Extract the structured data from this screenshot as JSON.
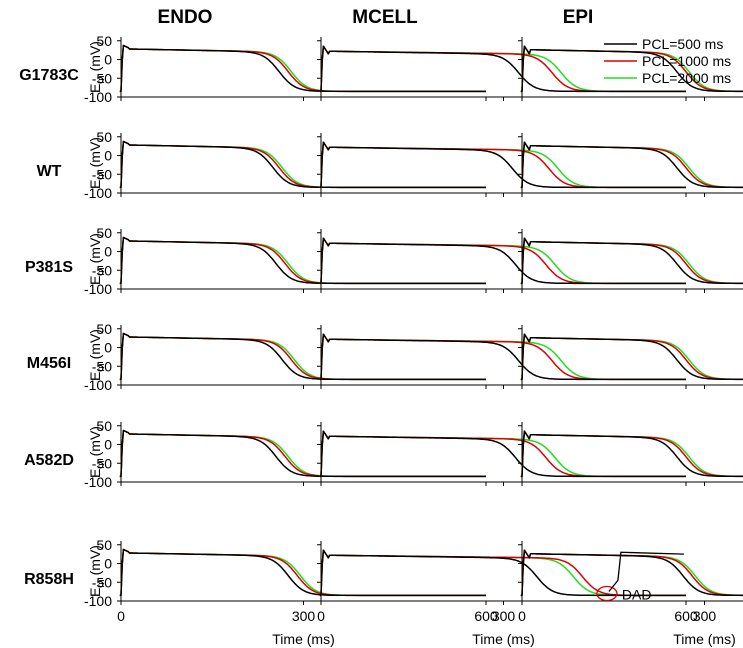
{
  "chart_data": {
    "type": "line",
    "columns": [
      "ENDO",
      "MCELL",
      "EPI"
    ],
    "rows": [
      "G1783C",
      "WT",
      "P381S",
      "M456I",
      "A582D",
      "R858H"
    ],
    "xlabel": "Time (ms)",
    "ylabel_main": "E",
    "ylabel_sub": "m",
    "ylabel_unit": " (mV)",
    "xlim": [
      0,
      600
    ],
    "ylim": [
      -100,
      60
    ],
    "xticks": [
      "0",
      "300",
      "600"
    ],
    "yticks": [
      "50",
      "0",
      "-50",
      "-100"
    ],
    "resting_potential": -85,
    "legend": {
      "location": "top-right of EPI column, first row",
      "entries": [
        "PCL=500 ms",
        "PCL=1000 ms",
        "PCL=2000 ms"
      ]
    },
    "series_colors": [
      "#000000",
      "#dd0000",
      "#22dd22"
    ],
    "annotation": {
      "text": "DAD",
      "row": "R858H",
      "column": "MCELL",
      "x_ms": 490,
      "y_mV": -80
    },
    "apd_ms": {
      "G1783C": {
        "ENDO": [
          260,
          275,
          280
        ],
        "MCELL": [
          325,
          380,
          395
        ],
        "EPI": [
          255,
          270,
          275
        ]
      },
      "WT": {
        "ENDO": [
          250,
          260,
          265
        ],
        "MCELL": [
          315,
          375,
          390
        ],
        "EPI": [
          255,
          270,
          275
        ]
      },
      "P381S": {
        "ENDO": [
          255,
          270,
          275
        ],
        "MCELL": [
          320,
          370,
          385
        ],
        "EPI": [
          255,
          270,
          275
        ]
      },
      "M456I": {
        "ENDO": [
          265,
          280,
          285
        ],
        "MCELL": [
          325,
          380,
          395
        ],
        "EPI": [
          255,
          270,
          275
        ]
      },
      "A582D": {
        "ENDO": [
          255,
          270,
          275
        ],
        "MCELL": [
          320,
          370,
          385
        ],
        "EPI": [
          255,
          270,
          275
        ]
      },
      "R858H": {
        "ENDO": [
          275,
          290,
          295
        ],
        "MCELL": [
          355,
          430,
          415
        ],
        "EPI": [
          265,
          280,
          285
        ]
      }
    }
  }
}
